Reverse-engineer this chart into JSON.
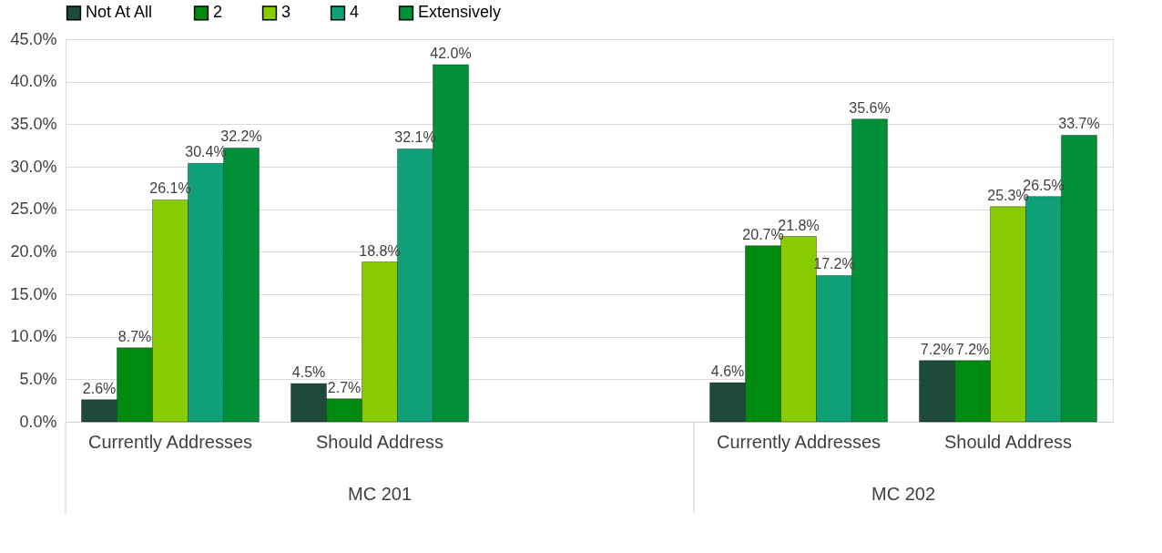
{
  "chart_data": {
    "type": "bar",
    "categories": [
      "Currently Addresses",
      "Should Address",
      null,
      "Currently Addresses",
      "Should Address"
    ],
    "series": [
      {
        "name": "Not At All",
        "color": "#1e4a3c",
        "values": [
          2.6,
          4.5,
          null,
          4.6,
          7.2
        ],
        "value_labels": [
          "2.6%",
          "4.5%",
          null,
          "4.6%",
          "7.2%"
        ]
      },
      {
        "name": "2",
        "color": "#008a10",
        "values": [
          8.7,
          2.7,
          null,
          20.7,
          7.2
        ],
        "value_labels": [
          "8.7%",
          "2.7%",
          null,
          "20.7%",
          "7.2%"
        ]
      },
      {
        "name": "3",
        "color": "#88cc00",
        "values": [
          26.1,
          18.8,
          null,
          21.8,
          25.3
        ],
        "value_labels": [
          "26.1%",
          "18.8%",
          null,
          "21.8%",
          "25.3%"
        ]
      },
      {
        "name": "4",
        "color": "#10a078",
        "values": [
          30.4,
          32.1,
          null,
          17.2,
          26.5
        ],
        "value_labels": [
          "30.4%",
          "32.1%",
          null,
          "17.2%",
          "26.5%"
        ]
      },
      {
        "name": "Extensively",
        "color": "#009038",
        "values": [
          32.2,
          42.0,
          null,
          35.6,
          33.7
        ],
        "value_labels": [
          "32.2%",
          "42.0%",
          null,
          "35.6%",
          "33.7%"
        ]
      }
    ],
    "ylim": [
      0,
      45
    ],
    "yticks": [
      {
        "value": 0,
        "label": "0.0%"
      },
      {
        "value": 5,
        "label": "5.0%"
      },
      {
        "value": 10,
        "label": "10.0%"
      },
      {
        "value": 15,
        "label": "15.0%"
      },
      {
        "value": 20,
        "label": "20.0%"
      },
      {
        "value": 25,
        "label": "25.0%"
      },
      {
        "value": 30,
        "label": "30.0%"
      },
      {
        "value": 35,
        "label": "35.0%"
      },
      {
        "value": 40,
        "label": "40.0%"
      },
      {
        "value": 45,
        "label": "45.0%"
      }
    ],
    "annotations": [
      "MC 201",
      "MC 202"
    ],
    "grid": "y",
    "legend": "top"
  }
}
